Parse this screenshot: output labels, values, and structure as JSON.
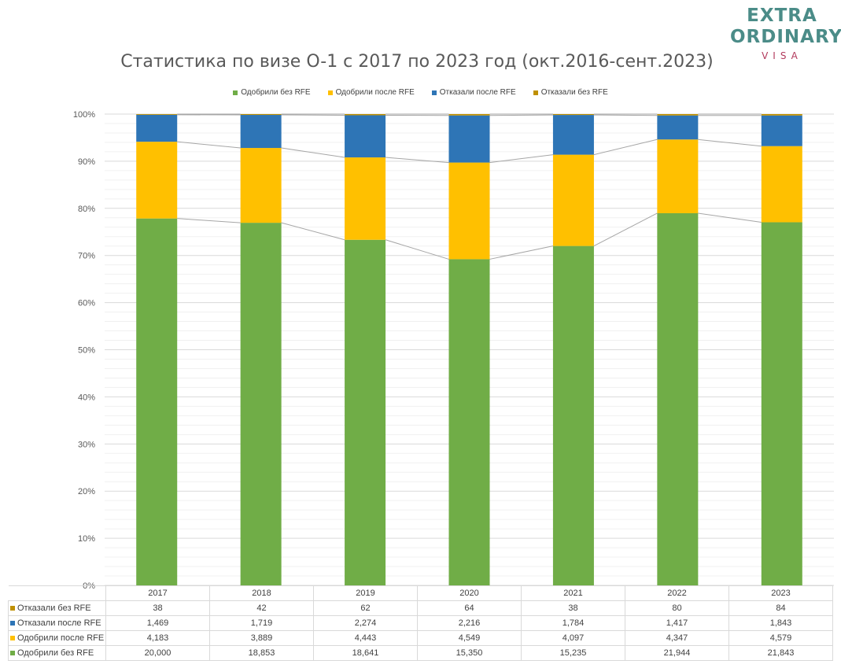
{
  "brand": {
    "line1": "EXTRA",
    "line2": "ORDINARY",
    "line3": "VISA"
  },
  "colors": {
    "approved_no_rfe": "#70ad47",
    "approved_after_rfe": "#ffc000",
    "denied_after_rfe": "#2e75b6",
    "denied_no_rfe": "#bf9000"
  },
  "chart_data": {
    "type": "bar",
    "stacked": "percent",
    "title": "Статистика по визе O-1 с 2017 по 2023 год (окт.2016-сент.2023)",
    "categories": [
      "2017",
      "2018",
      "2019",
      "2020",
      "2021",
      "2022",
      "2023"
    ],
    "series": [
      {
        "name": "Одобрили без RFE",
        "color": "#70ad47",
        "values": [
          20000,
          18853,
          18641,
          15350,
          15235,
          21944,
          21843
        ],
        "display": [
          "20,000",
          "18,853",
          "18,641",
          "15,350",
          "15,235",
          "21,944",
          "21,843"
        ]
      },
      {
        "name": "Одобрили после RFE",
        "color": "#ffc000",
        "values": [
          4183,
          3889,
          4443,
          4549,
          4097,
          4347,
          4579
        ],
        "display": [
          "4,183",
          "3,889",
          "4,443",
          "4,549",
          "4,097",
          "4,347",
          "4,579"
        ]
      },
      {
        "name": "Отказали после RFE",
        "color": "#2e75b6",
        "values": [
          1469,
          1719,
          2274,
          2216,
          1784,
          1417,
          1843
        ],
        "display": [
          "1,469",
          "1,719",
          "2,274",
          "2,216",
          "1,784",
          "1,417",
          "1,843"
        ]
      },
      {
        "name": "Отказали без RFE",
        "color": "#bf9000",
        "values": [
          38,
          42,
          62,
          64,
          38,
          80,
          84
        ],
        "display": [
          "38",
          "42",
          "62",
          "64",
          "38",
          "80",
          "84"
        ]
      }
    ],
    "yticks": [
      "0%",
      "10%",
      "20%",
      "30%",
      "40%",
      "50%",
      "60%",
      "70%",
      "80%",
      "90%",
      "100%"
    ],
    "ylim": [
      0,
      100
    ],
    "legend_position": "top",
    "grid": true,
    "series_lines": true,
    "data_table": true
  }
}
